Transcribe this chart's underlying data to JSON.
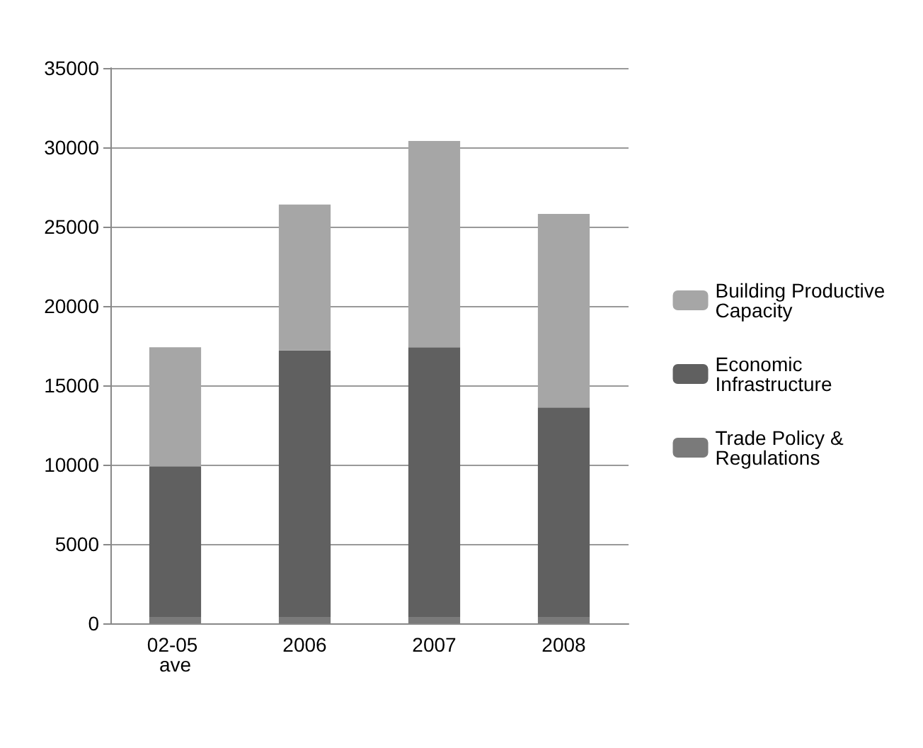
{
  "chart_data": {
    "type": "bar",
    "stacked": true,
    "categories": [
      "02-05 ave",
      "2006",
      "2007",
      "2008"
    ],
    "series": [
      {
        "name": "Trade Policy & Regulations",
        "color": "#7a7a7a",
        "values": [
          400,
          400,
          400,
          400
        ]
      },
      {
        "name": "Economic Infrastructure",
        "color": "#606060",
        "values": [
          9500,
          16800,
          17000,
          13200
        ]
      },
      {
        "name": "Building Productive Capacity",
        "color": "#a6a6a6",
        "values": [
          7500,
          9200,
          13000,
          12200
        ]
      }
    ],
    "ylim": [
      0,
      35000
    ],
    "yticks": [
      0,
      5000,
      10000,
      15000,
      20000,
      25000,
      30000,
      35000
    ],
    "grid": "y",
    "legend": "right"
  }
}
